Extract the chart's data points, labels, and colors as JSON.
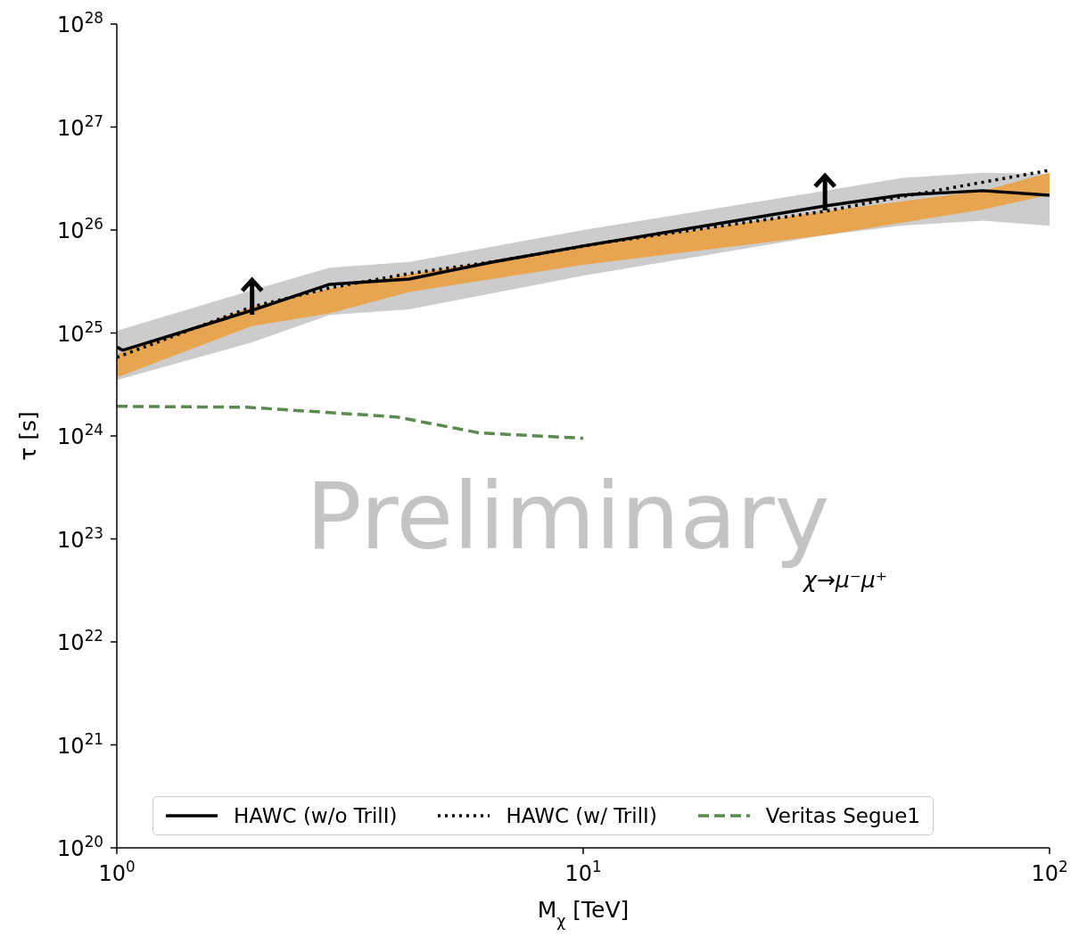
{
  "chart_data": {
    "type": "line",
    "xlabel": "M$_{χ}$ [TeV]",
    "ylabel": "τ [s]",
    "log": "xy",
    "grid": false,
    "legend": "bottom",
    "marker": "none",
    "xlim": [
      1,
      100
    ],
    "xticks": [
      {
        "value": 1,
        "label": "10$^{0}$"
      },
      {
        "value": 10,
        "label": "10$^{1}$"
      },
      {
        "value": 100,
        "label": "10$^{2}$"
      }
    ],
    "ylim": [
      1e+20,
      1e+28
    ],
    "yticks": [
      {
        "value": 1e+20,
        "label": "10$^{20}$"
      },
      {
        "value": 1e+21,
        "label": "10$^{21}$"
      },
      {
        "value": 1e+22,
        "label": "10$^{22}$"
      },
      {
        "value": 1e+23,
        "label": "10$^{23}$"
      },
      {
        "value": 1e+24,
        "label": "10$^{24}$"
      },
      {
        "value": 1e+25,
        "label": "10$^{25}$"
      },
      {
        "value": 1e+26,
        "label": "10$^{26}$"
      },
      {
        "value": 1e+27,
        "label": "10$^{27}$"
      },
      {
        "value": 1e+28,
        "label": "10$^{28}$"
      }
    ],
    "annotations": [
      "χ→μ⁻μ⁺",
      "Preliminary"
    ],
    "series": [
      {
        "type": "area",
        "color": "#cccccc",
        "x": [
          1,
          1.95,
          2.86,
          4.24,
          10,
          33,
          48,
          72,
          100
        ],
        "values": [
          null,
          null,
          null,
          null,
          null,
          null,
          null,
          null,
          null
        ],
        "lower": [
          3.5e+24,
          8.1e+24,
          1.5e+25,
          1.7e+25,
          3.6e+25,
          8.9e+25,
          1.1e+26,
          1.23e+26,
          1.1e+26
        ],
        "upper": [
          1.05e+25,
          2.6e+25,
          4.3e+25,
          4.9e+25,
          1e+26,
          2.4e+26,
          3.2e+26,
          3.6e+26,
          3.5e+26
        ]
      },
      {
        "type": "area",
        "color": "#e8a550",
        "x": [
          1,
          1.95,
          2.86,
          4.24,
          10,
          33,
          72,
          100
        ],
        "values": [
          null,
          null,
          null,
          null,
          null,
          null,
          null,
          null
        ],
        "lower": [
          3.7e+24,
          1.17e+25,
          1.55e+25,
          2.5e+25,
          4.6e+25,
          8.9e+25,
          1.58e+26,
          2.2e+26
        ],
        "upper": [
          6.2e+24,
          1.8e+25,
          2.7e+25,
          3.7e+25,
          7e+25,
          1.52e+26,
          2.4e+26,
          3.6e+26
        ]
      },
      {
        "name": "HAWC (w/o TrilI)",
        "color": "#000000",
        "line_style": "solid",
        "x": [
          1,
          1.03,
          1.95,
          2.86,
          4.24,
          6.38,
          10,
          33,
          48,
          72,
          100
        ],
        "values": [
          7.3e+24,
          6.8e+24,
          1.66e+25,
          2.97e+25,
          3.34e+25,
          4.88e+25,
          7e+25,
          1.71e+26,
          2.18e+26,
          2.41e+26,
          2.18e+26
        ]
      },
      {
        "name": "HAWC (w/ TrilI)",
        "color": "#000000",
        "line_style": "dotted",
        "x": [
          1,
          1.95,
          2.86,
          4.24,
          6.38,
          11.2,
          33,
          48,
          100
        ],
        "values": [
          5.8e+24,
          1.8e+25,
          2.74e+25,
          3.78e+25,
          4.9e+25,
          7.6e+25,
          1.52e+26,
          2.1e+26,
          3.8e+26
        ]
      },
      {
        "name": "Veritas Segue1",
        "color": "#5a8a4f",
        "line_style": "dashed",
        "x": [
          1,
          1.9,
          3.98,
          6,
          10
        ],
        "values": [
          1.94e+24,
          1.9e+24,
          1.53e+24,
          1.07e+24,
          9.5e+23
        ]
      }
    ]
  }
}
